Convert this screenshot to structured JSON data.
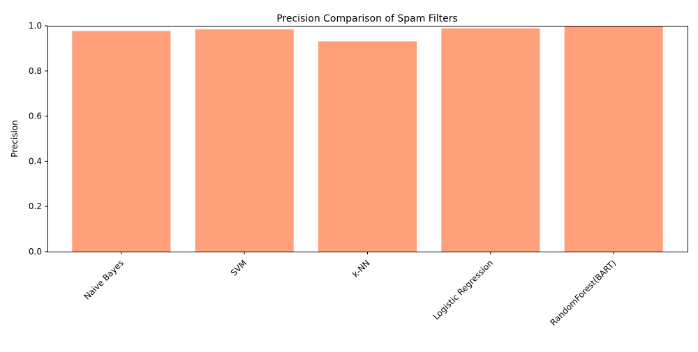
{
  "chart_data": {
    "type": "bar",
    "title": "Precision Comparison of Spam Filters",
    "xlabel": "",
    "ylabel": "Precision",
    "categories": [
      "Naive Bayes",
      "SVM",
      "k-NN",
      "Logistic Regression",
      "RandomForest(BART)"
    ],
    "values": [
      0.977,
      0.984,
      0.931,
      0.989,
      1.0
    ],
    "ylim": [
      0,
      1.0
    ],
    "yticks": [
      0.0,
      0.2,
      0.4,
      0.6,
      0.8,
      1.0
    ],
    "ytick_labels": [
      "0.0",
      "0.2",
      "0.4",
      "0.6",
      "0.8",
      "1.0"
    ],
    "bar_color": "#FFA07A",
    "grid": false,
    "legend": "none"
  }
}
